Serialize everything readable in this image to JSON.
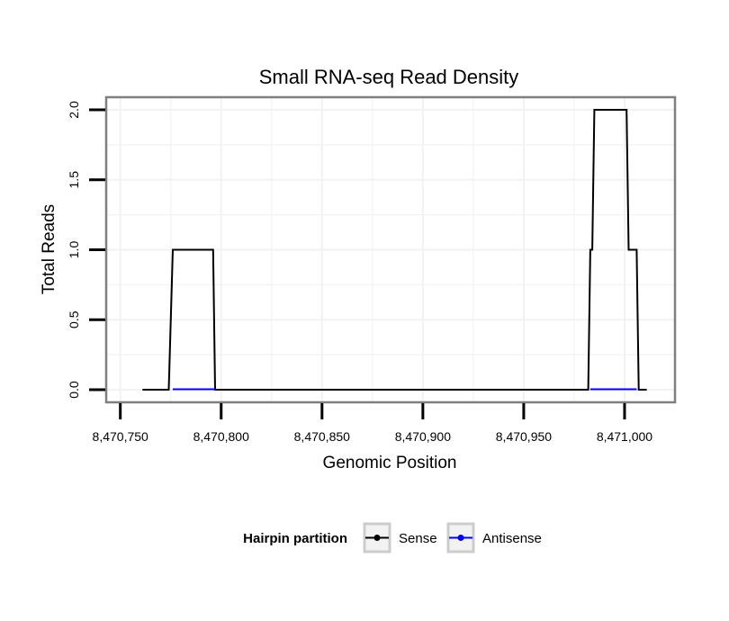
{
  "chart_data": {
    "type": "line",
    "title": "Small RNA-seq Read Density",
    "xlabel": "Genomic Position",
    "ylabel": "Total Reads",
    "xlim": [
      8470743,
      8471025
    ],
    "ylim": [
      -0.09,
      2.09
    ],
    "x_ticks": [
      8470750,
      8470800,
      8470850,
      8470900,
      8470950,
      8471000
    ],
    "x_tick_labels": [
      "8,470,750",
      "8,470,800",
      "8,470,850",
      "8,470,900",
      "8,470,950",
      "8,471,000"
    ],
    "y_ticks": [
      0,
      0.5,
      1,
      1.5,
      2
    ],
    "y_tick_labels": [
      "0.0",
      "0.5",
      "1.0",
      "1.5",
      "2.0"
    ],
    "grid": true,
    "legend": {
      "title": "Hairpin partition",
      "position": "bottom",
      "entries": [
        "Sense",
        "Antisense"
      ]
    },
    "series": [
      {
        "name": "Sense",
        "color": "#000000",
        "x": [
          8470761,
          8470774,
          8470776,
          8470796,
          8470797,
          8470982,
          8470983,
          8470984,
          8470985,
          8471001,
          8471002,
          8471006,
          8471007,
          8471011
        ],
        "y": [
          0,
          0,
          1,
          1,
          0,
          0,
          1,
          1,
          2,
          2,
          1,
          1,
          0,
          0
        ]
      },
      {
        "name": "Antisense",
        "color": "#0000ff",
        "x": [
          8470776,
          8470797,
          8470983,
          8471006
        ],
        "y": [
          0,
          0,
          0,
          0
        ],
        "segments": [
          [
            8470776,
            8470797
          ],
          [
            8470983,
            8471006
          ]
        ]
      }
    ]
  }
}
